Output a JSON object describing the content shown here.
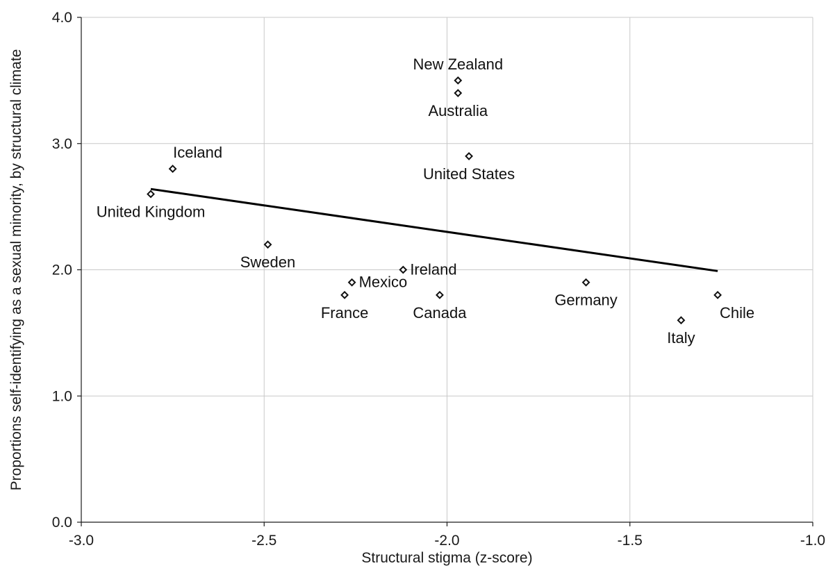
{
  "chart_data": {
    "type": "scatter",
    "title": "",
    "xlabel": "Structural stigma (z-score)",
    "ylabel": "Proportions self-identifying as a sexual minority, by structural climate",
    "xlim": [
      -3.0,
      -1.0
    ],
    "ylim": [
      0.0,
      4.0
    ],
    "x_ticks": [
      -3.0,
      -2.5,
      -2.0,
      -1.5,
      -1.0
    ],
    "x_tick_labels": [
      "-3.0",
      "-2.5",
      "-2.0",
      "-1.5",
      "-1.0"
    ],
    "y_ticks": [
      0.0,
      1.0,
      2.0,
      3.0,
      4.0
    ],
    "y_tick_labels": [
      "0.0",
      "1.0",
      "2.0",
      "3.0",
      "4.0"
    ],
    "grid": true,
    "points": [
      {
        "label": "United Kingdom",
        "x": -2.81,
        "y": 2.6,
        "label_pos": "below"
      },
      {
        "label": "Iceland",
        "x": -2.75,
        "y": 2.8,
        "label_pos": "above-right"
      },
      {
        "label": "Sweden",
        "x": -2.49,
        "y": 2.2,
        "label_pos": "below"
      },
      {
        "label": "France",
        "x": -2.28,
        "y": 1.8,
        "label_pos": "below"
      },
      {
        "label": "Mexico",
        "x": -2.26,
        "y": 1.9,
        "label_pos": "right"
      },
      {
        "label": "Ireland",
        "x": -2.12,
        "y": 2.0,
        "label_pos": "right"
      },
      {
        "label": "Canada",
        "x": -2.02,
        "y": 1.8,
        "label_pos": "below"
      },
      {
        "label": "New Zealand",
        "x": -1.97,
        "y": 3.5,
        "label_pos": "above"
      },
      {
        "label": "Australia",
        "x": -1.97,
        "y": 3.4,
        "label_pos": "below"
      },
      {
        "label": "United States",
        "x": -1.94,
        "y": 2.9,
        "label_pos": "below"
      },
      {
        "label": "Germany",
        "x": -1.62,
        "y": 1.9,
        "label_pos": "below"
      },
      {
        "label": "Italy",
        "x": -1.36,
        "y": 1.6,
        "label_pos": "below"
      },
      {
        "label": "Chile",
        "x": -1.26,
        "y": 1.8,
        "label_pos": "below-right"
      }
    ],
    "trendline": {
      "x": [
        -2.81,
        -1.26
      ],
      "y": [
        2.64,
        1.99
      ]
    },
    "colors": {
      "marker_edge": "#111111",
      "trendline": "#000000",
      "grid": "#c8c8c8"
    }
  }
}
